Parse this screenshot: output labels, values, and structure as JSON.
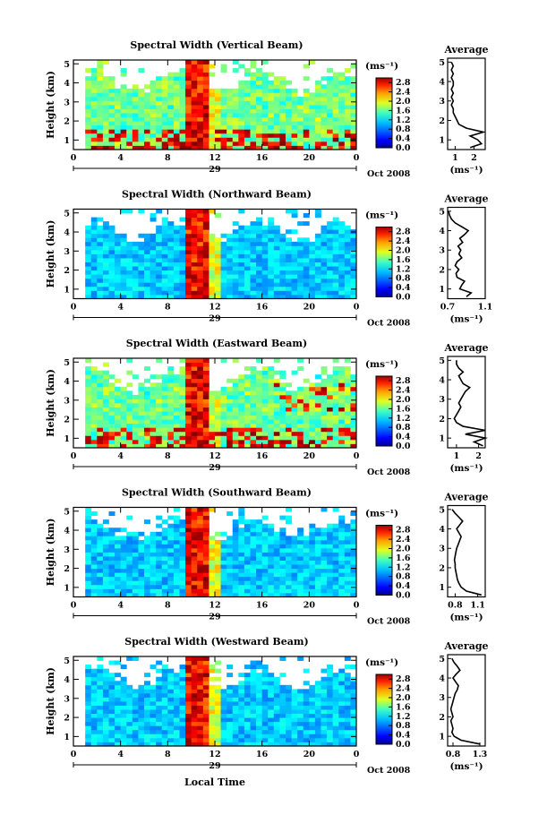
{
  "xlabel": "Local Time",
  "chart_data": [
    {
      "type": "heatmap",
      "title": "Spectral Width (Vertical Beam)",
      "ylabel": "Height (km)",
      "yticks": [
        "1",
        "2",
        "3",
        "4",
        "5"
      ],
      "ylim": [
        0.5,
        5.2
      ],
      "xticks": [
        "0",
        "4",
        "8",
        "12",
        "16",
        "20",
        "0"
      ],
      "xlim": [
        0,
        24
      ],
      "date_marker": "29",
      "date_label": "Oct 2008",
      "colorbar": {
        "unit": "(ms⁻¹)",
        "ticks": [
          "0.0",
          "0.4",
          "0.8",
          "1.2",
          "1.6",
          "2.0",
          "2.4",
          "2.8"
        ],
        "range": [
          0.0,
          3.0
        ]
      },
      "profile": {
        "title": "Average",
        "xticks": [
          "1",
          "2"
        ],
        "xlim": [
          0.6,
          2.6
        ],
        "unit": "(ms⁻¹)",
        "heights": [
          0.6,
          0.8,
          1.0,
          1.2,
          1.4,
          1.6,
          1.8,
          2.0,
          2.2,
          2.4,
          2.6,
          2.8,
          3.0,
          3.2,
          3.4,
          3.6,
          3.8,
          4.0,
          4.2,
          4.4,
          4.6,
          4.8,
          5.0
        ],
        "values": [
          1.8,
          2.4,
          2.2,
          1.8,
          2.5,
          1.6,
          1.2,
          1.1,
          1.0,
          0.9,
          0.9,
          0.8,
          0.9,
          0.8,
          0.9,
          0.8,
          0.9,
          0.9,
          0.8,
          0.9,
          0.8,
          0.9,
          0.8
        ]
      }
    },
    {
      "type": "heatmap",
      "title": "Spectral Width (Northward Beam)",
      "ylabel": "Height (km)",
      "yticks": [
        "1",
        "2",
        "3",
        "4",
        "5"
      ],
      "ylim": [
        0.5,
        5.2
      ],
      "xticks": [
        "0",
        "4",
        "8",
        "12",
        "16",
        "20",
        "0"
      ],
      "xlim": [
        0,
        24
      ],
      "date_marker": "29",
      "date_label": "Oct 2008",
      "colorbar": {
        "unit": "(ms⁻¹)",
        "ticks": [
          "0.0",
          "0.4",
          "0.8",
          "1.2",
          "1.6",
          "2.0",
          "2.4",
          "2.8"
        ],
        "range": [
          0.0,
          3.0
        ]
      },
      "profile": {
        "title": "Average",
        "xticks": [
          "0.7",
          "1.1"
        ],
        "xlim": [
          0.7,
          1.1
        ],
        "unit": "(ms⁻¹)",
        "heights": [
          0.6,
          0.8,
          1.0,
          1.2,
          1.4,
          1.6,
          1.8,
          2.0,
          2.2,
          2.4,
          2.6,
          2.8,
          3.0,
          3.2,
          3.4,
          3.6,
          3.8,
          4.0,
          4.2,
          4.4,
          4.6,
          4.8,
          5.0
        ],
        "values": [
          0.9,
          0.95,
          0.83,
          0.85,
          0.88,
          0.8,
          0.79,
          0.82,
          0.78,
          0.8,
          0.85,
          0.82,
          0.84,
          0.81,
          0.86,
          0.83,
          0.88,
          0.92,
          0.85,
          0.78,
          0.74,
          0.72,
          0.71
        ]
      }
    },
    {
      "type": "heatmap",
      "title": "Spectral Width (Eastward Beam)",
      "ylabel": "Height (km)",
      "yticks": [
        "1",
        "2",
        "3",
        "4",
        "5"
      ],
      "ylim": [
        0.5,
        5.2
      ],
      "xticks": [
        "0",
        "4",
        "8",
        "12",
        "16",
        "20",
        "0"
      ],
      "xlim": [
        0,
        24
      ],
      "date_marker": "29",
      "date_label": "Oct 2008",
      "colorbar": {
        "unit": "(ms⁻¹)",
        "ticks": [
          "0.0",
          "0.4",
          "0.8",
          "1.2",
          "1.6",
          "2.0",
          "2.4",
          "2.8"
        ],
        "range": [
          0.0,
          3.0
        ]
      },
      "profile": {
        "title": "Average",
        "xticks": [
          "1",
          "2"
        ],
        "xlim": [
          0.6,
          2.3
        ],
        "unit": "(ms⁻¹)",
        "heights": [
          0.6,
          0.8,
          1.0,
          1.2,
          1.4,
          1.6,
          1.8,
          2.0,
          2.2,
          2.4,
          2.6,
          2.8,
          3.0,
          3.2,
          3.4,
          3.6,
          3.8,
          4.0,
          4.2,
          4.4,
          4.6,
          4.8,
          5.0
        ],
        "values": [
          2.2,
          1.8,
          2.3,
          1.4,
          2.4,
          1.3,
          1.0,
          0.9,
          1.0,
          1.1,
          1.2,
          1.1,
          1.2,
          1.3,
          1.4,
          1.6,
          1.3,
          1.2,
          1.1,
          1.3,
          1.1,
          1.0,
          1.0
        ]
      }
    },
    {
      "type": "heatmap",
      "title": "Spectral Width (Southward Beam)",
      "ylabel": "Height (km)",
      "yticks": [
        "1",
        "2",
        "3",
        "4",
        "5"
      ],
      "ylim": [
        0.5,
        5.2
      ],
      "xticks": [
        "0",
        "4",
        "8",
        "12",
        "16",
        "20",
        "0"
      ],
      "xlim": [
        0,
        24
      ],
      "date_marker": "29",
      "date_label": "Oct 2008",
      "colorbar": {
        "unit": "(ms⁻¹)",
        "ticks": [
          "0.0",
          "0.4",
          "0.8",
          "1.2",
          "1.6",
          "2.0",
          "2.4",
          "2.8"
        ],
        "range": [
          0.0,
          3.0
        ]
      },
      "profile": {
        "title": "Average",
        "xticks": [
          "0.8",
          "1.1"
        ],
        "xlim": [
          0.7,
          1.2
        ],
        "unit": "(ms⁻¹)",
        "heights": [
          0.6,
          0.8,
          1.0,
          1.2,
          1.4,
          1.6,
          1.8,
          2.0,
          2.2,
          2.4,
          2.6,
          2.8,
          3.0,
          3.2,
          3.4,
          3.6,
          3.8,
          4.0,
          4.2,
          4.4,
          4.6,
          4.8,
          5.0
        ],
        "values": [
          1.15,
          0.95,
          0.88,
          0.85,
          0.83,
          0.82,
          0.81,
          0.8,
          0.8,
          0.79,
          0.8,
          0.81,
          0.82,
          0.84,
          0.86,
          0.88,
          0.85,
          0.82,
          0.86,
          0.9,
          0.85,
          0.8,
          0.76
        ]
      }
    },
    {
      "type": "heatmap",
      "title": "Spectral Width (Westward Beam)",
      "ylabel": "Height (km)",
      "yticks": [
        "1",
        "2",
        "3",
        "4",
        "5"
      ],
      "ylim": [
        0.5,
        5.2
      ],
      "xticks": [
        "0",
        "4",
        "8",
        "12",
        "16",
        "20",
        "0"
      ],
      "xlim": [
        0,
        24
      ],
      "date_marker": "29",
      "date_label": "Oct 2008",
      "colorbar": {
        "unit": "(ms⁻¹)",
        "ticks": [
          "0.0",
          "0.4",
          "0.8",
          "1.2",
          "1.6",
          "2.0",
          "2.4",
          "2.8"
        ],
        "range": [
          0.0,
          3.0
        ]
      },
      "profile": {
        "title": "Average",
        "xticks": [
          "0.8",
          "1.3"
        ],
        "xlim": [
          0.7,
          1.4
        ],
        "unit": "(ms⁻¹)",
        "heights": [
          0.6,
          0.8,
          1.0,
          1.2,
          1.4,
          1.6,
          1.8,
          2.0,
          2.2,
          2.4,
          2.6,
          2.8,
          3.0,
          3.2,
          3.4,
          3.6,
          3.8,
          4.0,
          4.2,
          4.4,
          4.6,
          4.8,
          5.0
        ],
        "values": [
          1.3,
          0.95,
          0.82,
          0.78,
          0.8,
          0.78,
          0.76,
          0.8,
          0.78,
          0.76,
          0.78,
          0.8,
          0.82,
          0.84,
          0.88,
          0.9,
          0.85,
          0.8,
          0.86,
          0.93,
          0.88,
          0.82,
          0.78
        ]
      }
    }
  ]
}
